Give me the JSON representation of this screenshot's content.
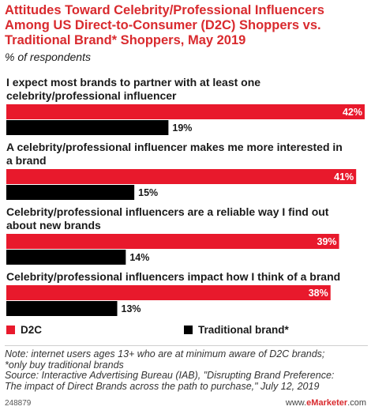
{
  "title": "Attitudes Toward Celebrity/Professional Influencers Among US Direct-to-Consumer (D2C) Shoppers vs. Traditional Brand* Shoppers, May 2019",
  "subtitle": "% of respondents",
  "colors": {
    "d2c": "#e8192c",
    "traditional": "#000000",
    "title": "#d92a2e"
  },
  "chart_data": {
    "type": "bar",
    "orientation": "horizontal",
    "title": "Attitudes Toward Celebrity/Professional Influencers Among US Direct-to-Consumer (D2C) Shoppers vs. Traditional Brand* Shoppers, May 2019",
    "subtitle": "% of respondents",
    "categories": [
      [
        "I expect most brands to partner with at least one",
        "celebrity/professional influencer"
      ],
      [
        "A celebrity/professional influencer makes me more interested in",
        "a brand"
      ],
      [
        "Celebrity/professional influencers are a reliable way I find out",
        "about new brands"
      ],
      [
        "Celebrity/professional influencers impact how I think of a brand"
      ]
    ],
    "series": [
      {
        "name": "D2C",
        "values": [
          42,
          41,
          39,
          38
        ],
        "labels": [
          "42%",
          "41%",
          "39%",
          "38%"
        ]
      },
      {
        "name": "Traditional brand*",
        "values": [
          19,
          15,
          14,
          13
        ],
        "labels": [
          "19%",
          "15%",
          "14%",
          "13%"
        ]
      }
    ],
    "xlim": [
      0,
      42
    ],
    "legend_position": "bottom",
    "grid": false
  },
  "legend": {
    "d2c": "D2C",
    "traditional": "Traditional brand*"
  },
  "notes": [
    "Note: internet users ages 13+ who are at minimum aware of D2C brands;",
    "*only buy traditional brands",
    "Source: Interactive Advertising Bureau (IAB), \"Disrupting Brand Preference:",
    "The impact of Direct Brands across the path to purchase,\" July 12, 2019"
  ],
  "footer": {
    "id": "248879",
    "site_prefix": "www.",
    "site_brand": "eMarketer",
    "site_suffix": ".com"
  }
}
